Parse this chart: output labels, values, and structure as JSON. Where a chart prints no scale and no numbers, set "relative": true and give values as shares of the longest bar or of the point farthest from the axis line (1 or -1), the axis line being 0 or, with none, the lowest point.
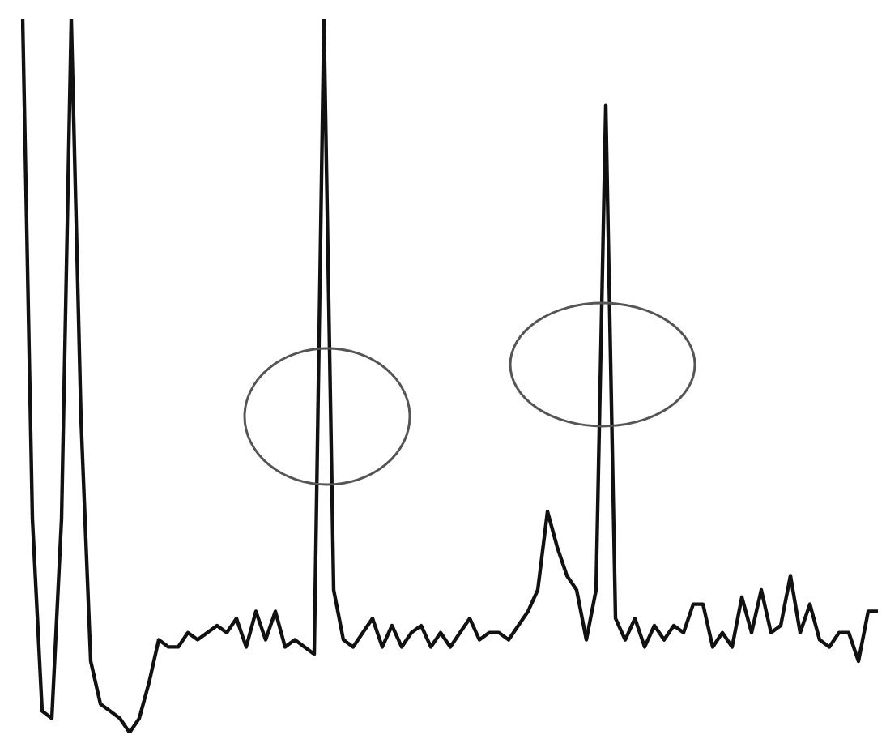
{
  "chart_data": {
    "type": "line",
    "relative": true,
    "marker": "none",
    "line_style": "solid",
    "legend": false,
    "categories": [
      null,
      null,
      null,
      null,
      null,
      null,
      null,
      null,
      null,
      null,
      null,
      null,
      null,
      null,
      null,
      null,
      null,
      null,
      null,
      null,
      null,
      null,
      null,
      null,
      null,
      null,
      null,
      null,
      null,
      null,
      null,
      null,
      null,
      null,
      null,
      null,
      null,
      null,
      null,
      null,
      null,
      null,
      null,
      null,
      null,
      null,
      null,
      null,
      null,
      null,
      null,
      null,
      null,
      null,
      null,
      null,
      null,
      null,
      null,
      null,
      null,
      null,
      null,
      null,
      null,
      null,
      null,
      null,
      null,
      null,
      null,
      null,
      null,
      null,
      null,
      null,
      null,
      null,
      null,
      null,
      null,
      null,
      null,
      null,
      null,
      null,
      null,
      null,
      null
    ],
    "series": [
      {
        "color": "#111111",
        "values": [
          1,
          0.3,
          0.03,
          0.02,
          0.3,
          1,
          0.44,
          0.1,
          0.04,
          0.03,
          0.02,
          0,
          0.02,
          0.07,
          0.13,
          0.12,
          0.12,
          0.14,
          0.13,
          0.14,
          0.15,
          0.14,
          0.16,
          0.12,
          0.17,
          0.13,
          0.17,
          0.12,
          0.13,
          0.12,
          0.11,
          1,
          0.2,
          0.13,
          0.12,
          0.14,
          0.16,
          0.12,
          0.15,
          0.12,
          0.14,
          0.15,
          0.12,
          0.14,
          0.12,
          0.14,
          0.16,
          0.13,
          0.14,
          0.14,
          0.13,
          0.15,
          0.17,
          0.2,
          0.31,
          0.26,
          0.22,
          0.2,
          0.13,
          0.2,
          0.88,
          0.16,
          0.13,
          0.16,
          0.12,
          0.15,
          0.13,
          0.15,
          0.14,
          0.18,
          0.18,
          0.12,
          0.14,
          0.12,
          0.19,
          0.14,
          0.2,
          0.14,
          0.15,
          0.22,
          0.14,
          0.18,
          0.13,
          0.12,
          0.14,
          0.14,
          0.1,
          0.17,
          0.17
        ]
      }
    ]
  }
}
